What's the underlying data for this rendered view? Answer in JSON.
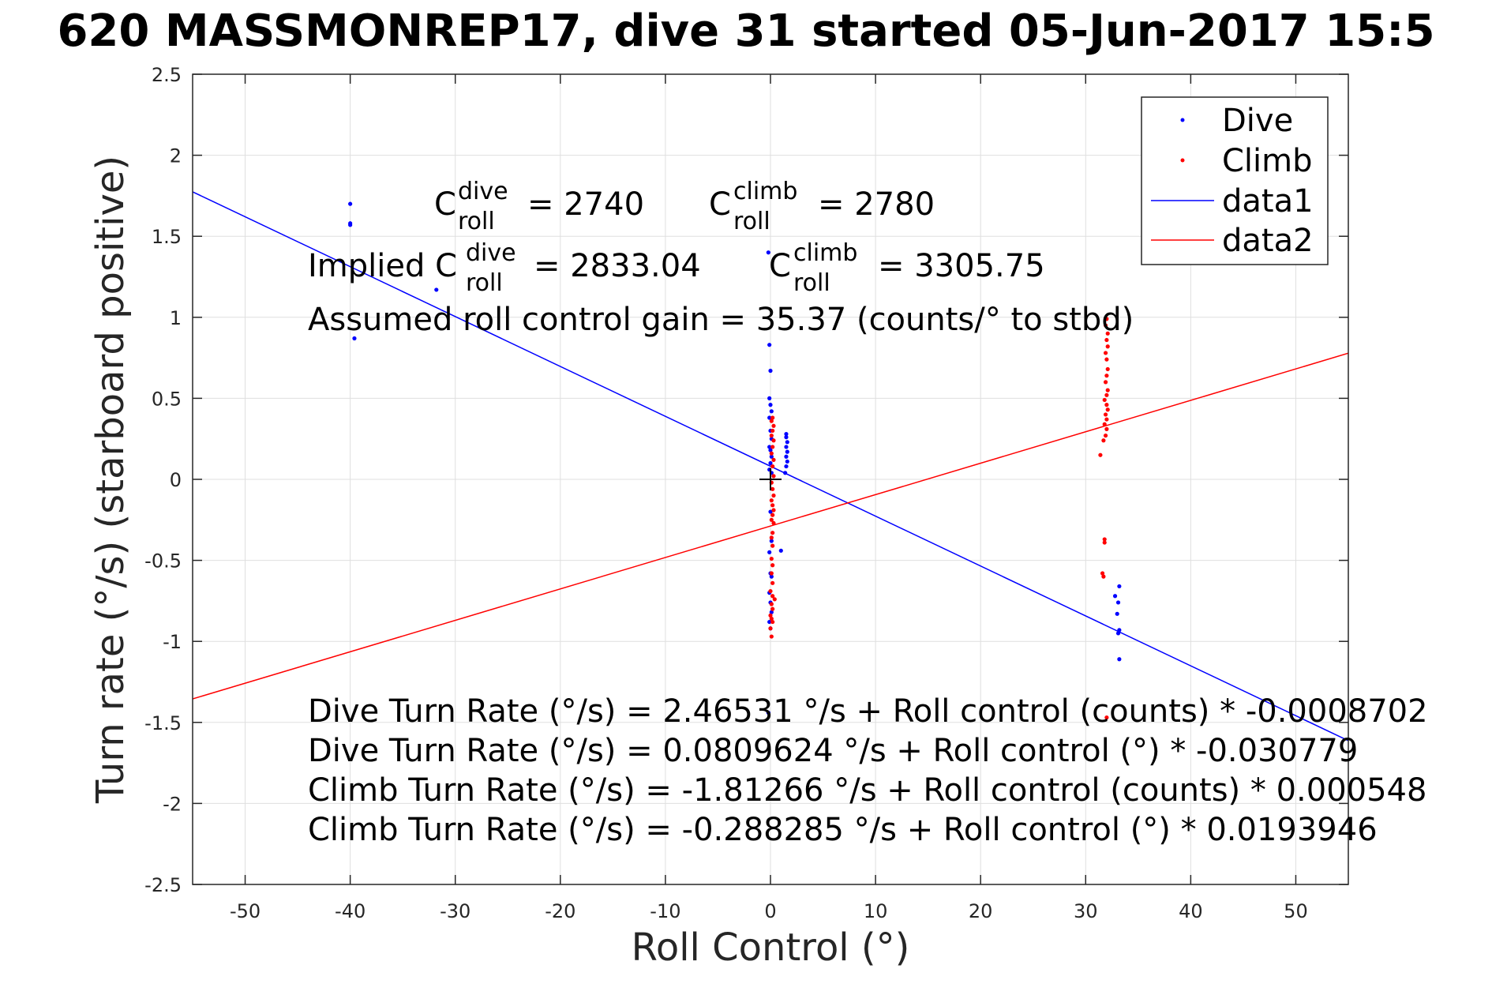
{
  "chart_data": {
    "type": "scatter",
    "title": "620 MASSMONREP17, dive 31 started 05-Jun-2017 15:5",
    "xlabel": "Roll Control (°)",
    "ylabel": "Turn rate (°/s) (starboard positive)",
    "xlim": [
      -55,
      55
    ],
    "ylim": [
      -2.5,
      2.5
    ],
    "x_ticks": [
      -50,
      -40,
      -30,
      -20,
      -10,
      0,
      10,
      20,
      30,
      40,
      50
    ],
    "y_ticks": [
      2.5,
      2,
      1.5,
      1,
      0.5,
      0,
      -0.5,
      -1,
      -1.5,
      -2,
      -2.5
    ],
    "x_tick_labels": [
      "-50",
      "-40",
      "-30",
      "-20",
      "-10",
      "0",
      "10",
      "20",
      "30",
      "40",
      "50"
    ],
    "y_tick_labels": [
      "2.5",
      "2",
      "1.5",
      "1",
      "0.5",
      "0",
      "-0.5",
      "-1",
      "-1.5",
      "-2",
      "-2.5"
    ],
    "grid": true,
    "legend_position": "top-right",
    "series": [
      {
        "name": "Dive",
        "kind": "points",
        "color": "#0000ff",
        "points": [
          [
            -40,
            1.7
          ],
          [
            -40,
            1.58
          ],
          [
            -40,
            1.57
          ],
          [
            -39.6,
            0.87
          ],
          [
            -31.8,
            1.17
          ],
          [
            -0.2,
            1.4
          ],
          [
            -0.1,
            0.83
          ],
          [
            0,
            0.67
          ],
          [
            -0.1,
            0.5
          ],
          [
            0,
            0.46
          ],
          [
            0.1,
            0.42
          ],
          [
            -0.1,
            0.38
          ],
          [
            0,
            0.3
          ],
          [
            0.1,
            0.25
          ],
          [
            -0.1,
            0.2
          ],
          [
            0,
            0.18
          ],
          [
            0.1,
            0.14
          ],
          [
            0,
            0.1
          ],
          [
            -0.1,
            0.06
          ],
          [
            0.1,
            0.04
          ],
          [
            1.5,
            0.28
          ],
          [
            1.5,
            0.26
          ],
          [
            1.6,
            0.23
          ],
          [
            1.5,
            0.2
          ],
          [
            1.6,
            0.17
          ],
          [
            1.5,
            0.14
          ],
          [
            1.6,
            0.11
          ],
          [
            1.5,
            0.08
          ],
          [
            1.4,
            0.04
          ],
          [
            0,
            -0.2
          ],
          [
            0.1,
            -0.38
          ],
          [
            -0.1,
            -0.45
          ],
          [
            1.0,
            -0.44
          ],
          [
            0,
            -0.58
          ],
          [
            0.1,
            -0.6
          ],
          [
            -0.1,
            -0.7
          ],
          [
            0,
            -0.76
          ],
          [
            0.1,
            -0.82
          ],
          [
            -0.1,
            -0.88
          ],
          [
            0,
            -0.92
          ],
          [
            -0.2,
            -1.44
          ],
          [
            33.2,
            -0.66
          ],
          [
            32.8,
            -0.72
          ],
          [
            33.1,
            -0.76
          ],
          [
            33.0,
            -0.83
          ],
          [
            33.2,
            -0.93
          ],
          [
            33.1,
            -0.95
          ],
          [
            33.2,
            -1.11
          ]
        ]
      },
      {
        "name": "Climb",
        "kind": "points",
        "color": "#ff0000",
        "points": [
          [
            0.2,
            0.38
          ],
          [
            0.1,
            0.36
          ],
          [
            0.3,
            0.33
          ],
          [
            0.2,
            0.3
          ],
          [
            0.1,
            0.27
          ],
          [
            0.3,
            0.24
          ],
          [
            0.2,
            0.2
          ],
          [
            0.1,
            0.16
          ],
          [
            0.3,
            0.12
          ],
          [
            0.2,
            0.08
          ],
          [
            0.3,
            0.02
          ],
          [
            0.1,
            -0.02
          ],
          [
            0.2,
            -0.06
          ],
          [
            0.3,
            -0.1
          ],
          [
            0.1,
            -0.13
          ],
          [
            0.2,
            -0.16
          ],
          [
            0.3,
            -0.19
          ],
          [
            0.2,
            -0.22
          ],
          [
            0.1,
            -0.25
          ],
          [
            0.3,
            -0.27
          ],
          [
            0.2,
            -0.33
          ],
          [
            0.1,
            -0.36
          ],
          [
            0.2,
            -0.41
          ],
          [
            0.1,
            -0.49
          ],
          [
            0.2,
            -0.53
          ],
          [
            0.1,
            -0.58
          ],
          [
            0.2,
            -0.64
          ],
          [
            0,
            -0.69
          ],
          [
            0.2,
            -0.72
          ],
          [
            0.4,
            -0.74
          ],
          [
            0.1,
            -0.77
          ],
          [
            0.2,
            -0.8
          ],
          [
            0,
            -0.84
          ],
          [
            0.1,
            -0.86
          ],
          [
            0.2,
            -0.88
          ],
          [
            0,
            -0.92
          ],
          [
            0.1,
            -0.97
          ],
          [
            32.0,
            0.99
          ],
          [
            31.9,
            0.95
          ],
          [
            32.1,
            0.9
          ],
          [
            32.0,
            0.86
          ],
          [
            32.1,
            0.82
          ],
          [
            31.9,
            0.78
          ],
          [
            32.0,
            0.74
          ],
          [
            32.1,
            0.68
          ],
          [
            32.0,
            0.64
          ],
          [
            31.9,
            0.6
          ],
          [
            32.1,
            0.55
          ],
          [
            32.0,
            0.52
          ],
          [
            31.8,
            0.49
          ],
          [
            32.0,
            0.46
          ],
          [
            32.1,
            0.43
          ],
          [
            31.9,
            0.4
          ],
          [
            32.0,
            0.37
          ],
          [
            31.8,
            0.34
          ],
          [
            32.0,
            0.31
          ],
          [
            31.9,
            0.27
          ],
          [
            31.7,
            0.24
          ],
          [
            31.4,
            0.15
          ],
          [
            31.8,
            -0.37
          ],
          [
            31.8,
            -0.39
          ],
          [
            31.6,
            -0.58
          ],
          [
            31.7,
            -0.6
          ],
          [
            32.0,
            -1.47
          ]
        ]
      },
      {
        "name": "data1",
        "kind": "line",
        "color": "#0000ff",
        "points": [
          [
            -55,
            1.7743
          ],
          [
            55,
            -1.6127
          ]
        ]
      },
      {
        "name": "data2",
        "kind": "line",
        "color": "#ff0000",
        "points": [
          [
            -55,
            -1.355
          ],
          [
            55,
            0.7784
          ]
        ]
      }
    ],
    "reference_marker": {
      "symbol": "+",
      "x": 0,
      "y": 0
    },
    "annotations": {
      "c_dive": {
        "label": "C",
        "sup": "dive",
        "sub": "roll",
        "value": "= 2740"
      },
      "c_climb": {
        "label": "C",
        "sup": "climb",
        "sub": "roll",
        "value": "= 2780"
      },
      "implied_prefix": "Implied C",
      "implied_dive": {
        "sup": "dive",
        "sub": "roll",
        "value": "= 2833.04"
      },
      "implied_climb": {
        "label": "C",
        "sup": "climb",
        "sub": "roll",
        "value": "= 3305.75"
      },
      "gain": "Assumed roll control gain = 35.37 (counts/° to stbd)",
      "eq1": "Dive Turn Rate (°/s) = 2.46531 °/s + Roll control (counts) * -0.0008702",
      "eq2": "Dive Turn Rate (°/s) = 0.0809624 °/s + Roll control (°) * -0.030779",
      "eq3": "Climb Turn Rate (°/s) = -1.81266 °/s + Roll control (counts) * 0.000548",
      "eq4": "Climb Turn Rate (°/s) = -0.288285 °/s + Roll control (°) * 0.0193946"
    }
  }
}
